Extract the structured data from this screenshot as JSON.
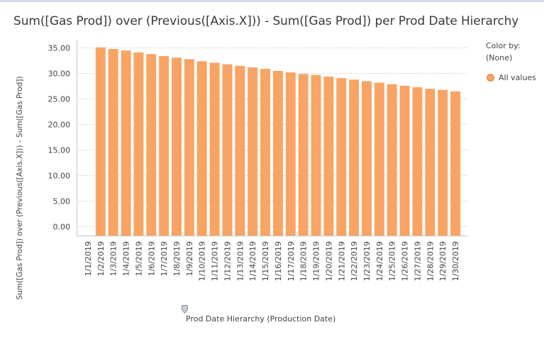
{
  "title": "Sum([Gas Prod]) over (Previous([Axis.X])) - Sum([Gas Prod]) per Prod Date Hierarchy",
  "legend": {
    "color_by_label": "Color by:",
    "color_by_value": "(None)",
    "item_label": "All values",
    "item_color": "#f8a464"
  },
  "axis": {
    "y_label": "Sum([Gas Prod]) over (Previous([Axis.X])) - Sum([Gas Prod])",
    "x_label": "Prod Date Hierarchy (Production Date)"
  },
  "chart_data": {
    "type": "bar",
    "title": "Sum([Gas Prod]) over (Previous([Axis.X])) - Sum([Gas Prod]) per Prod Date Hierarchy",
    "xlabel": "Prod Date Hierarchy (Production Date)",
    "ylabel": "Sum([Gas Prod]) over (Previous([Axis.X])) - Sum([Gas Prod])",
    "categories": [
      "1/1/2019",
      "1/2/2019",
      "1/3/2019",
      "1/4/2019",
      "1/5/2019",
      "1/6/2019",
      "1/7/2019",
      "1/8/2019",
      "1/9/2019",
      "1/10/2019",
      "1/11/2019",
      "1/12/2019",
      "1/13/2019",
      "1/14/2019",
      "1/15/2019",
      "1/16/2019",
      "1/17/2019",
      "1/18/2019",
      "1/19/2019",
      "1/20/2019",
      "1/21/2019",
      "1/22/2019",
      "1/23/2019",
      "1/24/2019",
      "1/25/2019",
      "1/26/2019",
      "1/27/2019",
      "1/28/2019",
      "1/29/2019",
      "1/30/2019"
    ],
    "values": [
      null,
      35.0,
      34.7,
      34.4,
      34.0,
      33.7,
      33.3,
      33.0,
      32.7,
      32.3,
      32.0,
      31.7,
      31.4,
      31.1,
      30.8,
      30.4,
      30.1,
      29.8,
      29.6,
      29.3,
      29.0,
      28.7,
      28.4,
      28.1,
      27.8,
      27.5,
      27.2,
      26.9,
      26.7,
      26.4
    ],
    "ylim": [
      -1.8,
      36.5
    ],
    "yticks": [
      "0.00",
      "5.00",
      "10.00",
      "15.00",
      "20.00",
      "25.00",
      "30.00",
      "35.00"
    ],
    "ytick_values": [
      0,
      5,
      10,
      15,
      20,
      25,
      30,
      35
    ],
    "grid": true,
    "legend_position": "right",
    "bar_color": "#f8a464"
  }
}
